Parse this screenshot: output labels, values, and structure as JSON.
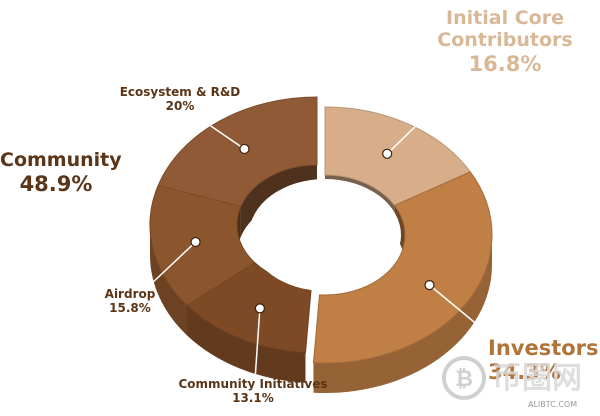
{
  "chart_data": {
    "type": "pie",
    "style": "3d-donut",
    "slices": [
      {
        "name": "Initial Core Contributors",
        "value": 16.8,
        "color": "#d8ae8a"
      },
      {
        "name": "Investors",
        "value": 34.3,
        "color": "#c07f45"
      },
      {
        "name": "Community Initiatives",
        "value": 13.1,
        "color": "#7e4a26"
      },
      {
        "name": "Airdrop",
        "value": 15.8,
        "color": "#8b552d"
      },
      {
        "name": "Ecosystem & R&D",
        "value": 20,
        "color": "#8f5a35"
      }
    ],
    "group": {
      "name": "Community",
      "value": 48.9,
      "members": [
        "Community Initiatives",
        "Airdrop",
        "Ecosystem & R&D"
      ]
    },
    "labels": {
      "core_name": "Initial Core Contributors",
      "core_pct": "16.8%",
      "investors_name": "Investors",
      "investors_pct": "34.3%",
      "initiatives_name": "Community Initiatives",
      "initiatives_pct": "13.1%",
      "airdrop_name": "Airdrop",
      "airdrop_pct": "15.8%",
      "ecosystem_name": "Ecosystem & R&D",
      "ecosystem_pct": "20%",
      "community_name": "Community",
      "community_pct": "48.9%"
    }
  },
  "watermark": {
    "text": "币圈网",
    "url": "ALIBTC.COM"
  }
}
